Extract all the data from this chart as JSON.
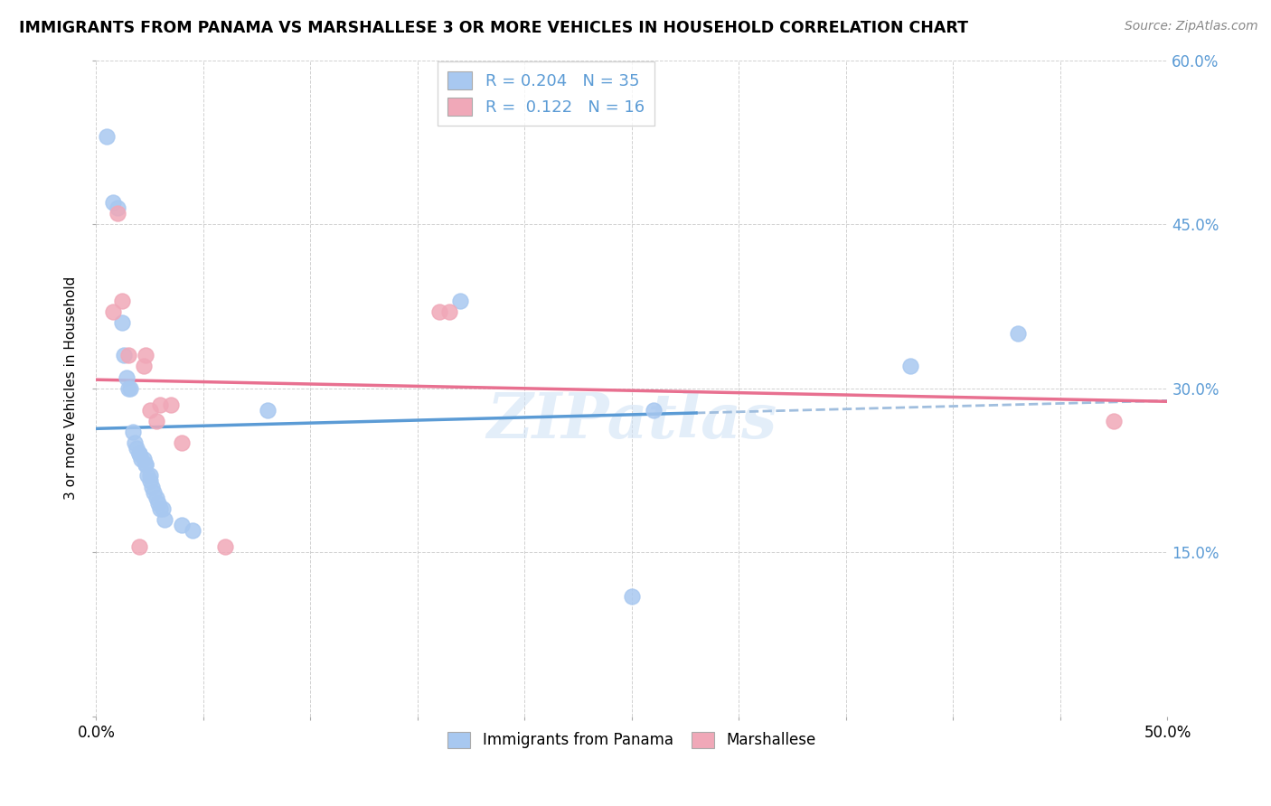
{
  "title": "IMMIGRANTS FROM PANAMA VS MARSHALLESE 3 OR MORE VEHICLES IN HOUSEHOLD CORRELATION CHART",
  "source": "Source: ZipAtlas.com",
  "ylabel": "3 or more Vehicles in Household",
  "xlim": [
    0,
    0.5
  ],
  "ylim": [
    0,
    0.6
  ],
  "xticks": [
    0.0,
    0.05,
    0.1,
    0.15,
    0.2,
    0.25,
    0.3,
    0.35,
    0.4,
    0.45,
    0.5
  ],
  "xtick_labels_shown": {
    "0.0": "0.0%",
    "0.5": "50.0%"
  },
  "yticks": [
    0.0,
    0.15,
    0.3,
    0.45,
    0.6
  ],
  "right_ytick_labels": [
    "",
    "15.0%",
    "30.0%",
    "45.0%",
    "60.0%"
  ],
  "panama_color": "#a8c8f0",
  "panama_edge_color": "#7aaad0",
  "marshallese_color": "#f0a8b8",
  "marshallese_edge_color": "#d080a0",
  "blue_line_color": "#5b9bd5",
  "pink_line_color": "#e87090",
  "blue_dash_color": "#a0bede",
  "panama_R": 0.204,
  "panama_N": 35,
  "marshallese_R": 0.122,
  "marshallese_N": 16,
  "watermark": "ZIPatlas",
  "legend_label_1": "Immigrants from Panama",
  "legend_label_2": "Marshallese",
  "panama_x": [
    0.005,
    0.008,
    0.01,
    0.012,
    0.013,
    0.014,
    0.015,
    0.016,
    0.017,
    0.018,
    0.019,
    0.02,
    0.02,
    0.021,
    0.022,
    0.023,
    0.023,
    0.024,
    0.025,
    0.025,
    0.026,
    0.027,
    0.028,
    0.029,
    0.03,
    0.031,
    0.032,
    0.04,
    0.045,
    0.08,
    0.17,
    0.25,
    0.26,
    0.38,
    0.43
  ],
  "panama_y": [
    0.53,
    0.47,
    0.465,
    0.36,
    0.33,
    0.31,
    0.3,
    0.3,
    0.26,
    0.25,
    0.245,
    0.24,
    0.24,
    0.235,
    0.235,
    0.23,
    0.23,
    0.22,
    0.22,
    0.215,
    0.21,
    0.205,
    0.2,
    0.195,
    0.19,
    0.19,
    0.18,
    0.175,
    0.17,
    0.28,
    0.38,
    0.11,
    0.28,
    0.32,
    0.35
  ],
  "marshallese_x": [
    0.008,
    0.01,
    0.012,
    0.015,
    0.02,
    0.022,
    0.023,
    0.025,
    0.028,
    0.03,
    0.035,
    0.04,
    0.06,
    0.16,
    0.165,
    0.475
  ],
  "marshallese_y": [
    0.37,
    0.46,
    0.38,
    0.33,
    0.155,
    0.32,
    0.33,
    0.28,
    0.27,
    0.285,
    0.285,
    0.25,
    0.155,
    0.37,
    0.37,
    0.27
  ]
}
